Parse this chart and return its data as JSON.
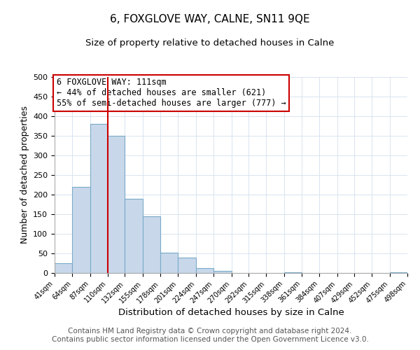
{
  "title": "6, FOXGLOVE WAY, CALNE, SN11 9QE",
  "subtitle": "Size of property relative to detached houses in Calne",
  "xlabel": "Distribution of detached houses by size in Calne",
  "ylabel": "Number of detached properties",
  "bar_color": "#c8d8ea",
  "bar_edge_color": "#7aaac8",
  "grid_color": "#d8e4f0",
  "vline_x": 110,
  "vline_color": "#cc0000",
  "annotation_box_color": "#cc0000",
  "annotation_lines": [
    "6 FOXGLOVE WAY: 111sqm",
    "← 44% of detached houses are smaller (621)",
    "55% of semi-detached houses are larger (777) →"
  ],
  "bin_edges": [
    41,
    64,
    87,
    110,
    132,
    155,
    178,
    201,
    224,
    247,
    270,
    292,
    315,
    338,
    361,
    384,
    407,
    429,
    452,
    475,
    498
  ],
  "bar_heights": [
    25,
    220,
    380,
    350,
    190,
    145,
    52,
    40,
    12,
    5,
    0,
    0,
    0,
    1,
    0,
    0,
    0,
    0,
    0,
    1
  ],
  "ylim": [
    0,
    500
  ],
  "yticks": [
    0,
    50,
    100,
    150,
    200,
    250,
    300,
    350,
    400,
    450,
    500
  ],
  "footer_lines": [
    "Contains HM Land Registry data © Crown copyright and database right 2024.",
    "Contains public sector information licensed under the Open Government Licence v3.0."
  ],
  "footer_fontsize": 7.5,
  "title_fontsize": 11,
  "subtitle_fontsize": 9.5,
  "annotation_fontsize": 8.5
}
